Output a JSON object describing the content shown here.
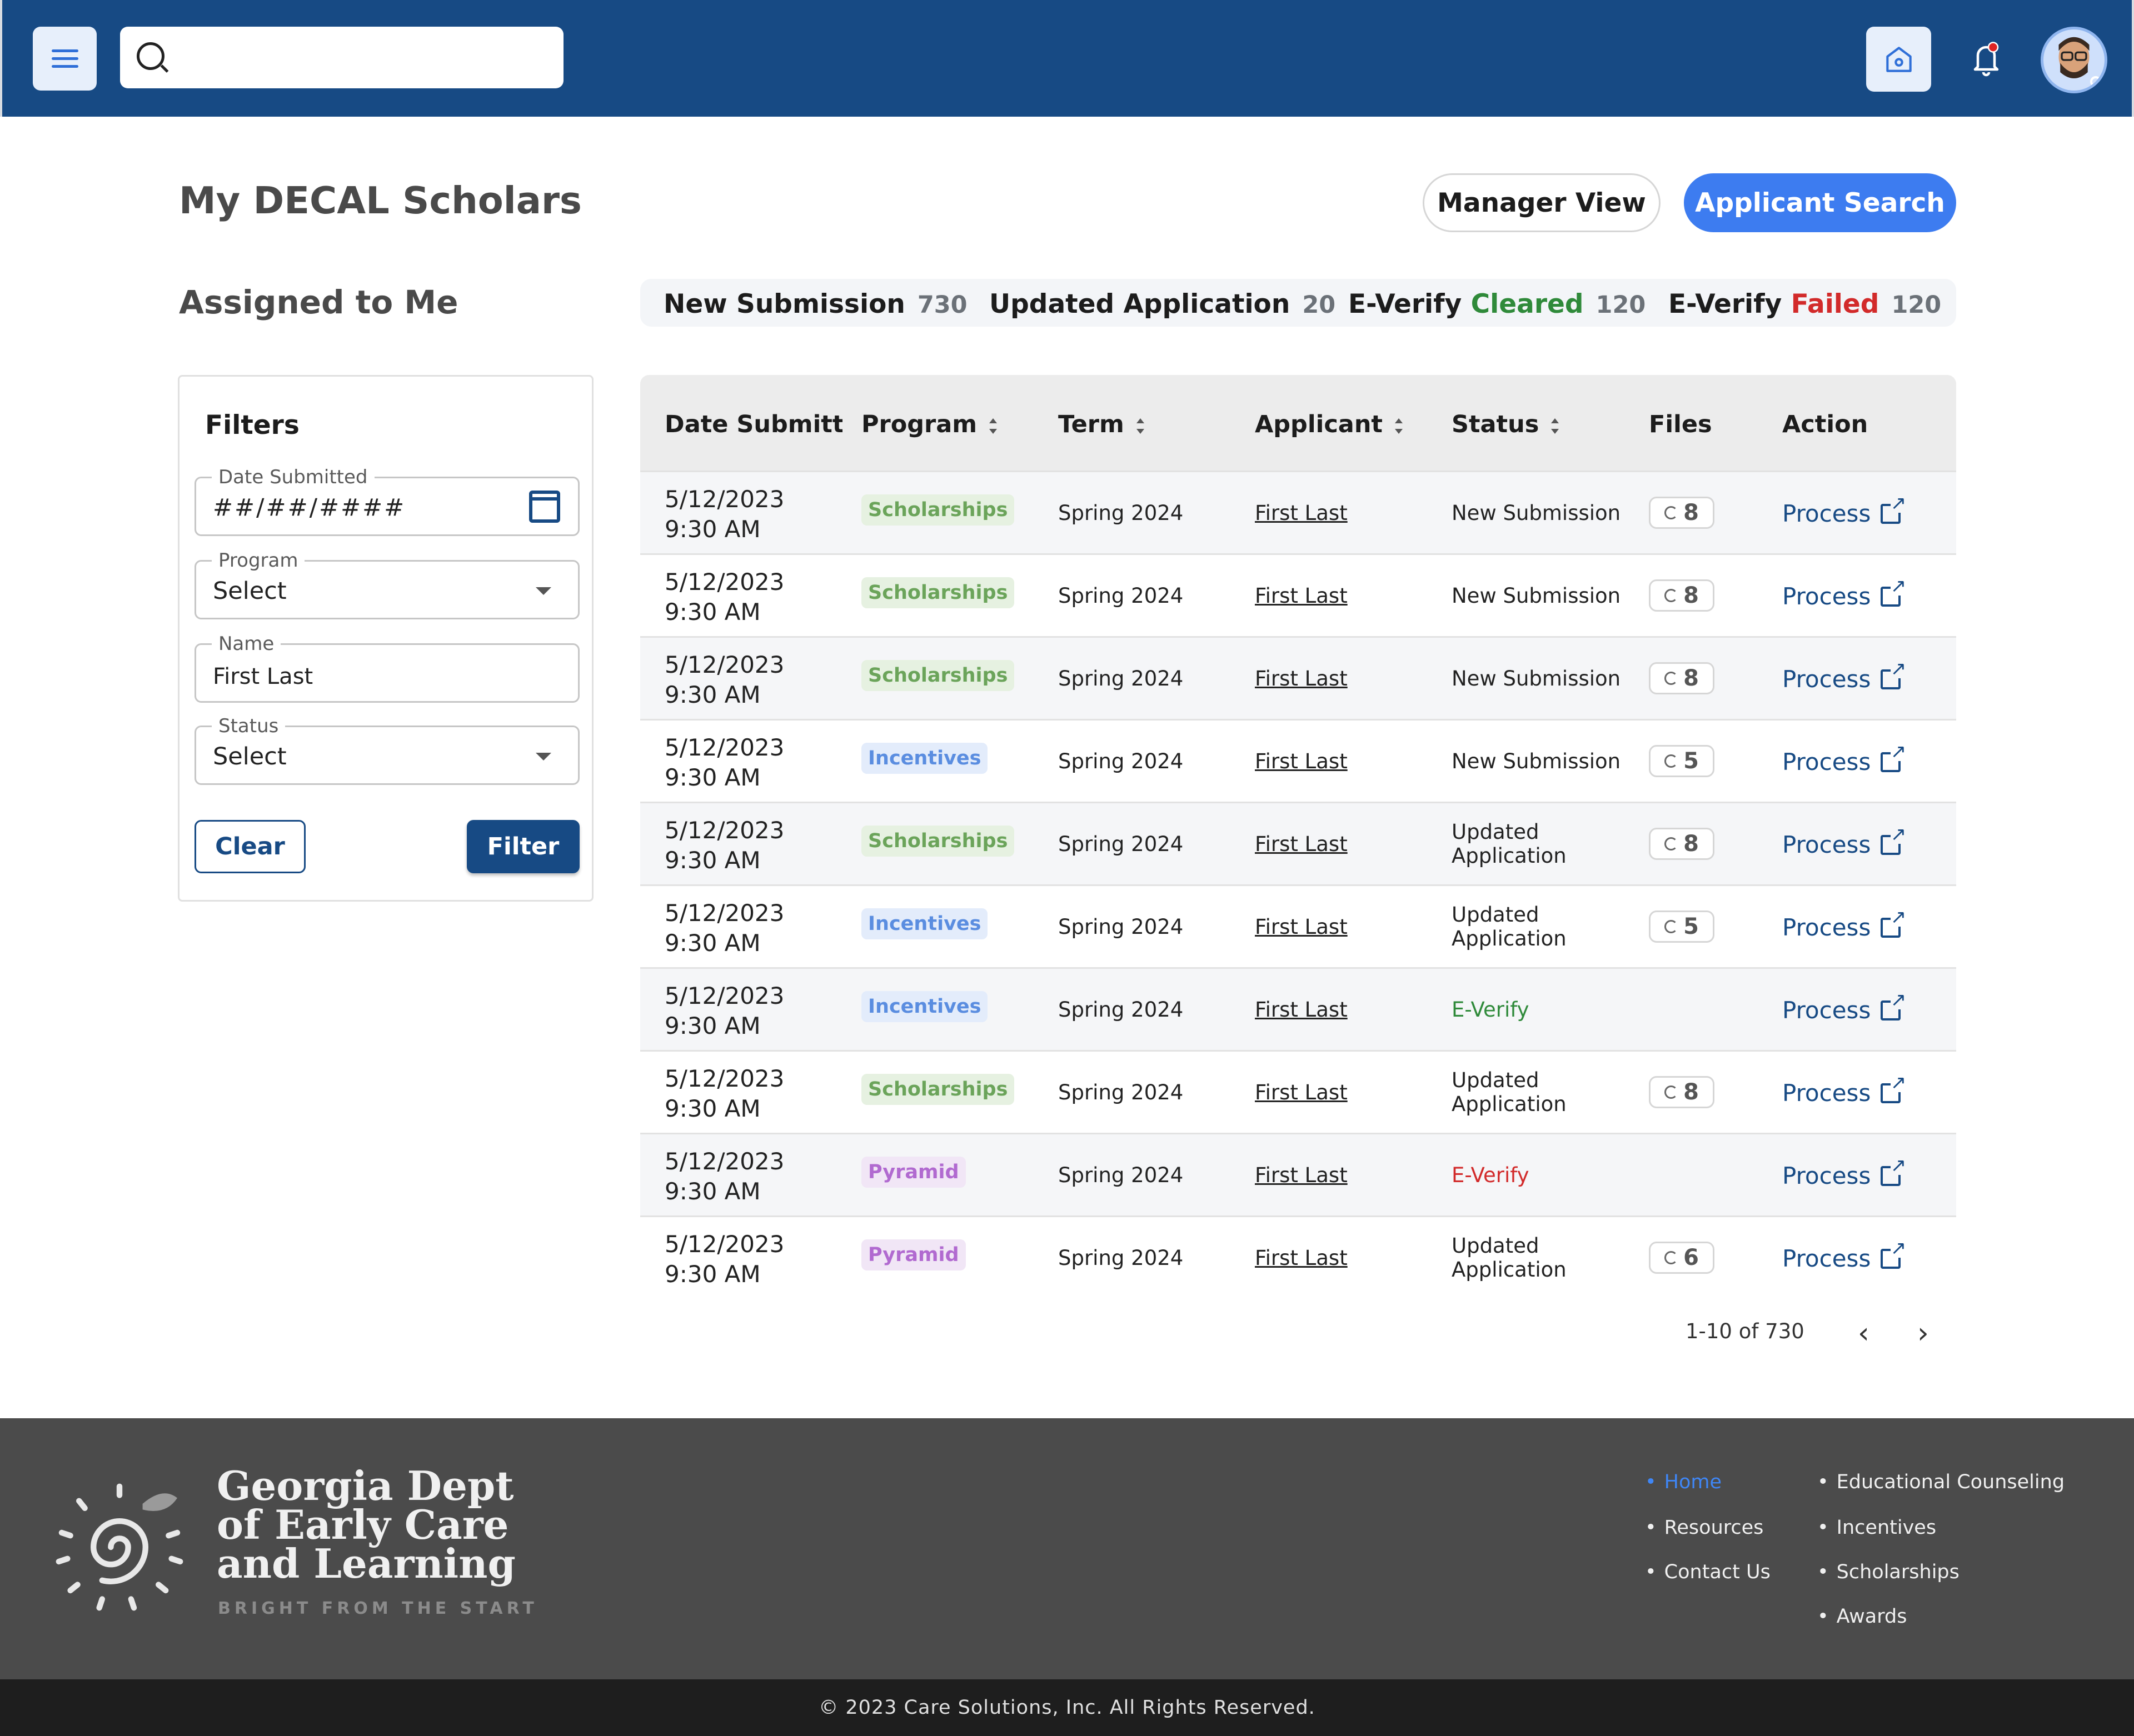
{
  "header": {
    "search_placeholder": "",
    "icons": [
      "menu-icon",
      "search-icon",
      "home-icon",
      "bell-icon",
      "avatar"
    ]
  },
  "page": {
    "title": "My DECAL Scholars",
    "manager_view": "Manager View",
    "applicant_search": "Applicant Search",
    "assigned": "Assigned to Me"
  },
  "stats": [
    {
      "label": "New Submission",
      "count": "730"
    },
    {
      "label": "Updated Application",
      "count": "20"
    },
    {
      "label_prefix": "E-Verify",
      "label_emph": "Cleared",
      "count": "120",
      "color": "#2f8a3a"
    },
    {
      "label_prefix": "E-Verify",
      "label_emph": "Failed",
      "count": "120",
      "color": "#d22a2a"
    }
  ],
  "filters": {
    "title": "Filters",
    "date": {
      "label": "Date Submitted",
      "value": "##/##/####"
    },
    "program": {
      "label": "Program",
      "value": "Select"
    },
    "name": {
      "label": "Name",
      "value": "First Last"
    },
    "status": {
      "label": "Status",
      "value": "Select"
    },
    "clear": "Clear",
    "filter": "Filter"
  },
  "table": {
    "columns": [
      "Date Submitted",
      "Program",
      "Term",
      "Applicant",
      "Status",
      "Files",
      "Action"
    ],
    "rows": [
      {
        "date": "5/12/2023",
        "time": "9:30 AM",
        "program": "Scholarships",
        "term": "Spring 2024",
        "applicant": "First Last",
        "status": "New Submission",
        "files": "8",
        "action": "Process"
      },
      {
        "date": "5/12/2023",
        "time": "9:30 AM",
        "program": "Scholarships",
        "term": "Spring 2024",
        "applicant": "First Last",
        "status": "New Submission",
        "files": "8",
        "action": "Process"
      },
      {
        "date": "5/12/2023",
        "time": "9:30 AM",
        "program": "Scholarships",
        "term": "Spring 2024",
        "applicant": "First Last",
        "status": "New Submission",
        "files": "8",
        "action": "Process"
      },
      {
        "date": "5/12/2023",
        "time": "9:30 AM",
        "program": "Incentives",
        "term": "Spring 2024",
        "applicant": "First Last",
        "status": "New Submission",
        "files": "5",
        "action": "Process"
      },
      {
        "date": "5/12/2023",
        "time": "9:30 AM",
        "program": "Scholarships",
        "term": "Spring 2024",
        "applicant": "First Last",
        "status_l1": "Updated",
        "status_l2": "Application",
        "files": "8",
        "action": "Process"
      },
      {
        "date": "5/12/2023",
        "time": "9:30 AM",
        "program": "Incentives",
        "term": "Spring 2024",
        "applicant": "First Last",
        "status_l1": "Updated",
        "status_l2": "Application",
        "files": "5",
        "action": "Process"
      },
      {
        "date": "5/12/2023",
        "time": "9:30 AM",
        "program": "Incentives",
        "term": "Spring 2024",
        "applicant": "First Last",
        "status": "E-Verify",
        "action": "Process"
      },
      {
        "date": "5/12/2023",
        "time": "9:30 AM",
        "program": "Scholarships",
        "term": "Spring 2024",
        "applicant": "First Last",
        "status_l1": "Updated",
        "status_l2": "Application",
        "files": "8",
        "action": "Process"
      },
      {
        "date": "5/12/2023",
        "time": "9:30 AM",
        "program": "Pyramid",
        "term": "Spring 2024",
        "applicant": "First Last",
        "status": "E-Verify",
        "action": "Process"
      },
      {
        "date": "5/12/2023",
        "time": "9:30 AM",
        "program": "Pyramid",
        "term": "Spring 2024",
        "applicant": "First Last",
        "status_l1": "Updated",
        "status_l2": "Application",
        "files": "6",
        "action": "Process"
      }
    ],
    "pagination": "1-10 of 730"
  },
  "footer": {
    "org_line1": "Georgia Dept",
    "org_line2": "of Early Care",
    "org_line3": "and Learning",
    "tagline": "BRIGHT FROM THE START",
    "links_col1": [
      "Home",
      "Resources",
      "Contact Us"
    ],
    "links_col2": [
      "Educational Counseling",
      "Incentives",
      "Scholarships",
      "Awards"
    ],
    "copyright": "© 2023 Care Solutions, Inc. All Rights Reserved."
  }
}
